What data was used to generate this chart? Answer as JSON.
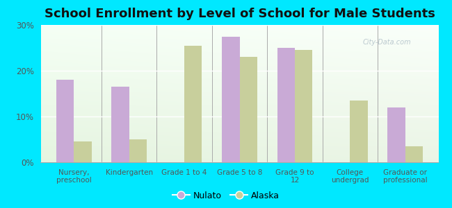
{
  "title": "School Enrollment by Level of School for Male Students",
  "categories": [
    "Nursery,\npreschool",
    "Kindergarten",
    "Grade 1 to 4",
    "Grade 5 to 8",
    "Grade 9 to\n12",
    "College\nundergrad",
    "Graduate or\nprofessional"
  ],
  "nulato": [
    18.0,
    16.5,
    0.0,
    27.5,
    25.0,
    0.0,
    12.0
  ],
  "alaska": [
    4.5,
    5.0,
    25.5,
    23.0,
    24.5,
    13.5,
    3.5
  ],
  "nulato_color": "#c9aad6",
  "alaska_color": "#c8cf9c",
  "background_outer": "#00e8ff",
  "ylim": [
    0,
    30
  ],
  "yticks": [
    0,
    10,
    20,
    30
  ],
  "ytick_labels": [
    "0%",
    "10%",
    "20%",
    "30%"
  ],
  "title_fontsize": 13,
  "bar_width": 0.32,
  "legend_labels": [
    "Nulato",
    "Alaska"
  ],
  "watermark": "City-Data.com"
}
